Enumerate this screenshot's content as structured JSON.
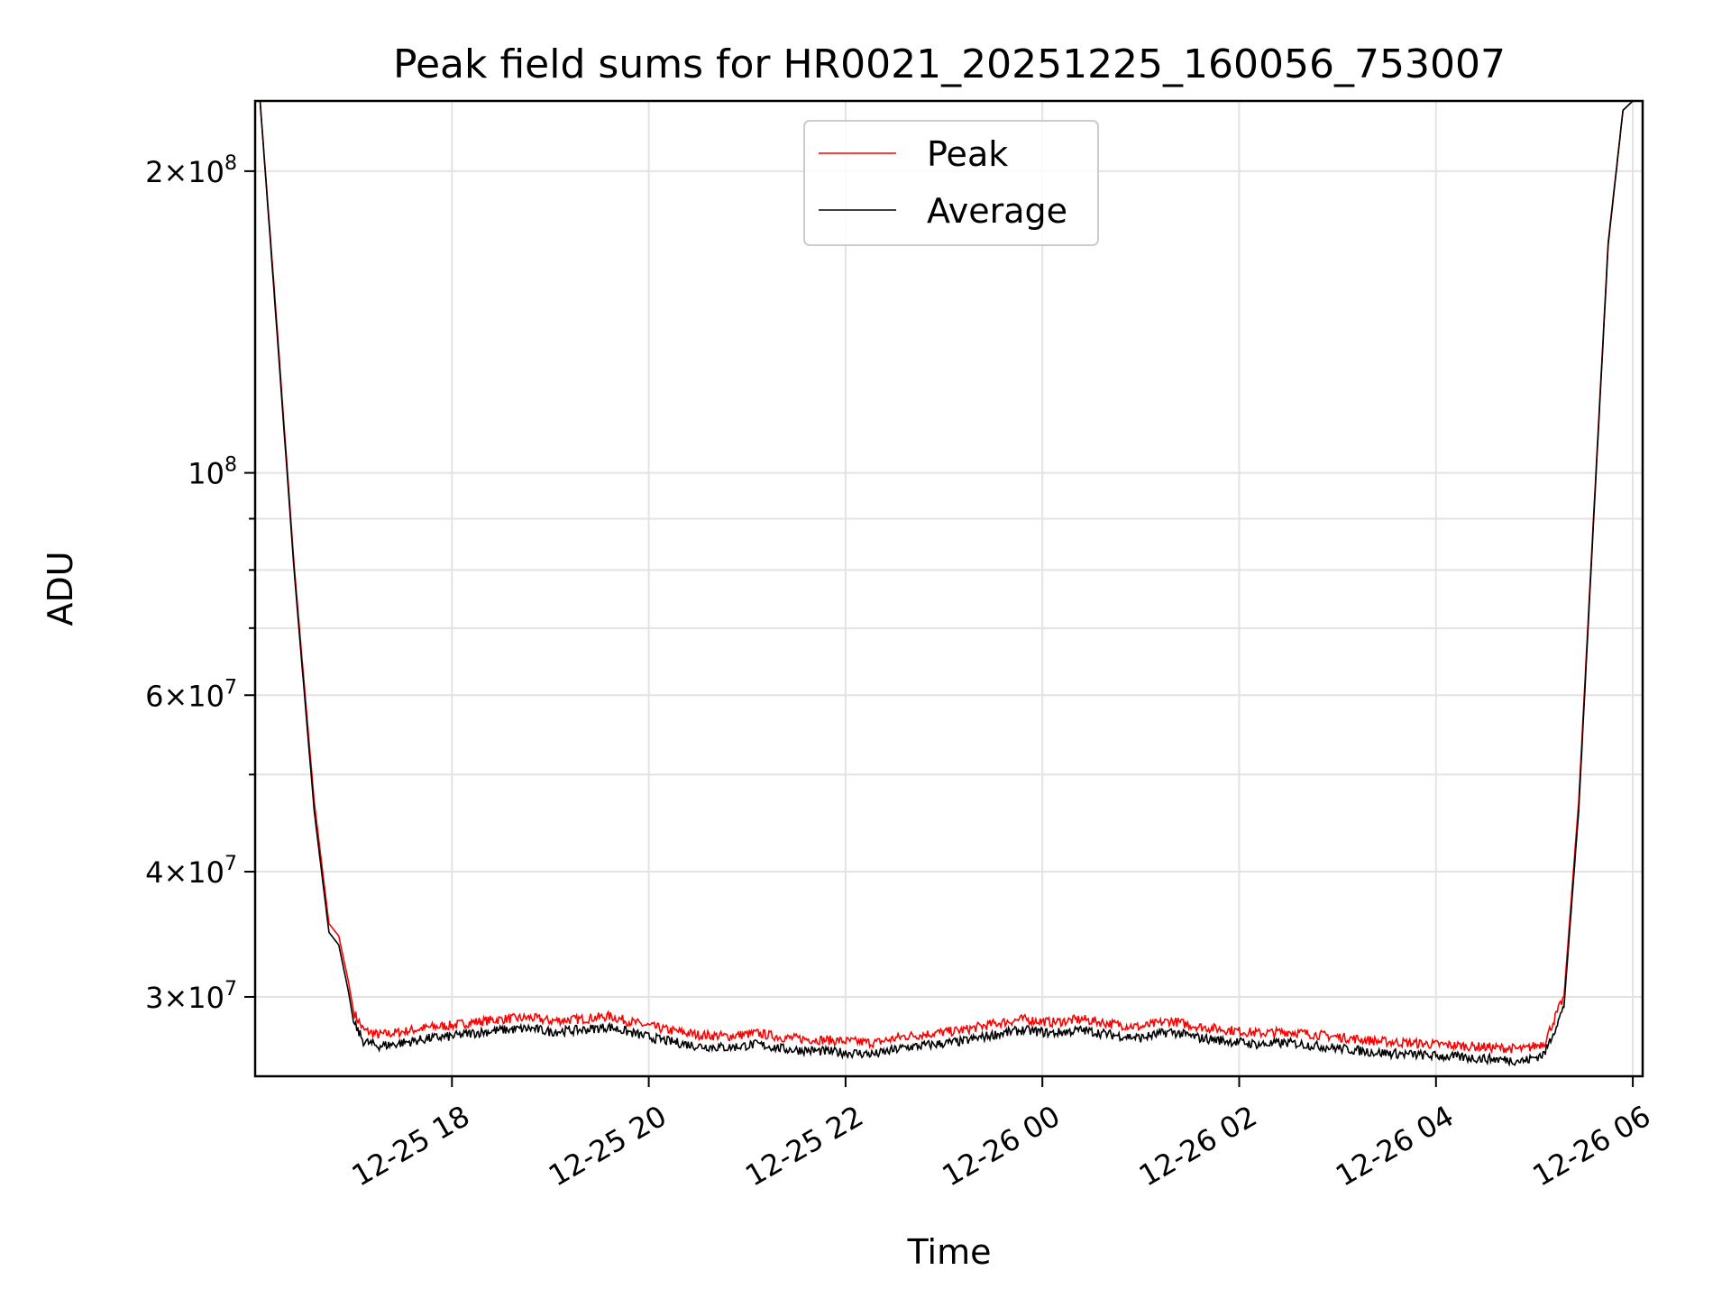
{
  "chart_data": {
    "type": "line",
    "title": "Peak field sums for HR0021_20251225_160056_753007",
    "xlabel": "Time",
    "ylabel": "ADU",
    "yscale": "log",
    "xlim_hours": [
      16.0,
      30.1
    ],
    "ylim": [
      25000000,
      235000000
    ],
    "grid": true,
    "legend_position": "upper center",
    "x_ticks": [
      {
        "label": "12-25 18",
        "hour": 18
      },
      {
        "label": "12-25 20",
        "hour": 20
      },
      {
        "label": "12-25 22",
        "hour": 22
      },
      {
        "label": "12-26 00",
        "hour": 24
      },
      {
        "label": "12-26 02",
        "hour": 26
      },
      {
        "label": "12-26 04",
        "hour": 28
      },
      {
        "label": "12-26 06",
        "hour": 30
      }
    ],
    "y_major_ticks": [
      {
        "base": "3",
        "exp": "7",
        "value": 30000000
      },
      {
        "base": "4",
        "exp": "7",
        "value": 40000000
      },
      {
        "base": "6",
        "exp": "7",
        "value": 60000000
      },
      {
        "base": "",
        "exp": "8",
        "value": 100000000
      },
      {
        "base": "2",
        "exp": "8",
        "value": 200000000
      }
    ],
    "y_minor_values": [
      50000000,
      70000000,
      80000000,
      90000000
    ],
    "series": [
      {
        "name": "Peak",
        "color": "#ff0000",
        "hours": [
          16.05,
          16.2,
          16.4,
          16.6,
          16.75,
          16.85,
          16.95,
          17.0,
          17.1,
          17.25,
          17.4,
          17.6,
          17.8,
          18.0,
          18.2,
          18.5,
          18.8,
          19.0,
          19.3,
          19.6,
          19.9,
          20.2,
          20.5,
          20.8,
          21.1,
          21.4,
          21.7,
          22.0,
          22.3,
          22.6,
          22.9,
          23.2,
          23.5,
          23.8,
          24.1,
          24.4,
          24.7,
          25.0,
          25.3,
          25.6,
          25.9,
          26.2,
          26.5,
          26.8,
          27.1,
          27.4,
          27.7,
          28.0,
          28.3,
          28.6,
          28.9,
          29.1,
          29.3,
          29.45,
          29.6,
          29.75,
          29.9,
          30.0,
          30.1
        ],
        "values": [
          235000000,
          150000000,
          80000000,
          47000000,
          35500000,
          34500000,
          31000000,
          29000000,
          27800000,
          27500000,
          27600000,
          27800000,
          28000000,
          28100000,
          28300000,
          28500000,
          28600000,
          28400000,
          28500000,
          28700000,
          28200000,
          27800000,
          27500000,
          27400000,
          27600000,
          27300000,
          27200000,
          27100000,
          27000000,
          27400000,
          27600000,
          27800000,
          28200000,
          28500000,
          28300000,
          28500000,
          28200000,
          28000000,
          28400000,
          28000000,
          27800000,
          27600000,
          27700000,
          27500000,
          27300000,
          27100000,
          27000000,
          26900000,
          26800000,
          26700000,
          26600000,
          27000000,
          30000000,
          47000000,
          90000000,
          170000000,
          230000000,
          235000000,
          235000000
        ]
      },
      {
        "name": "Average",
        "color": "#000000",
        "hours": [
          16.05,
          16.2,
          16.4,
          16.6,
          16.75,
          16.85,
          16.95,
          17.0,
          17.1,
          17.25,
          17.4,
          17.6,
          17.8,
          18.0,
          18.2,
          18.5,
          18.8,
          19.0,
          19.3,
          19.6,
          19.9,
          20.2,
          20.5,
          20.8,
          21.1,
          21.4,
          21.7,
          22.0,
          22.3,
          22.6,
          22.9,
          23.2,
          23.5,
          23.8,
          24.1,
          24.4,
          24.7,
          25.0,
          25.3,
          25.6,
          25.9,
          26.2,
          26.5,
          26.8,
          27.1,
          27.4,
          27.7,
          28.0,
          28.3,
          28.6,
          28.9,
          29.1,
          29.3,
          29.45,
          29.6,
          29.75,
          29.9,
          30.0,
          30.1
        ],
        "values": [
          235000000,
          148000000,
          79000000,
          46000000,
          34800000,
          33800000,
          30300000,
          28300000,
          27100000,
          26800000,
          26900000,
          27100000,
          27300000,
          27400000,
          27600000,
          27800000,
          27900000,
          27700000,
          27800000,
          28000000,
          27500000,
          27100000,
          26800000,
          26700000,
          26900000,
          26600000,
          26500000,
          26400000,
          26300000,
          26700000,
          26900000,
          27100000,
          27500000,
          27800000,
          27600000,
          27800000,
          27500000,
          27300000,
          27700000,
          27300000,
          27100000,
          26900000,
          27000000,
          26800000,
          26600000,
          26400000,
          26300000,
          26200000,
          26100000,
          26000000,
          25900000,
          26300000,
          29300000,
          46000000,
          89000000,
          169000000,
          230000000,
          235000000,
          235000000
        ]
      }
    ]
  }
}
